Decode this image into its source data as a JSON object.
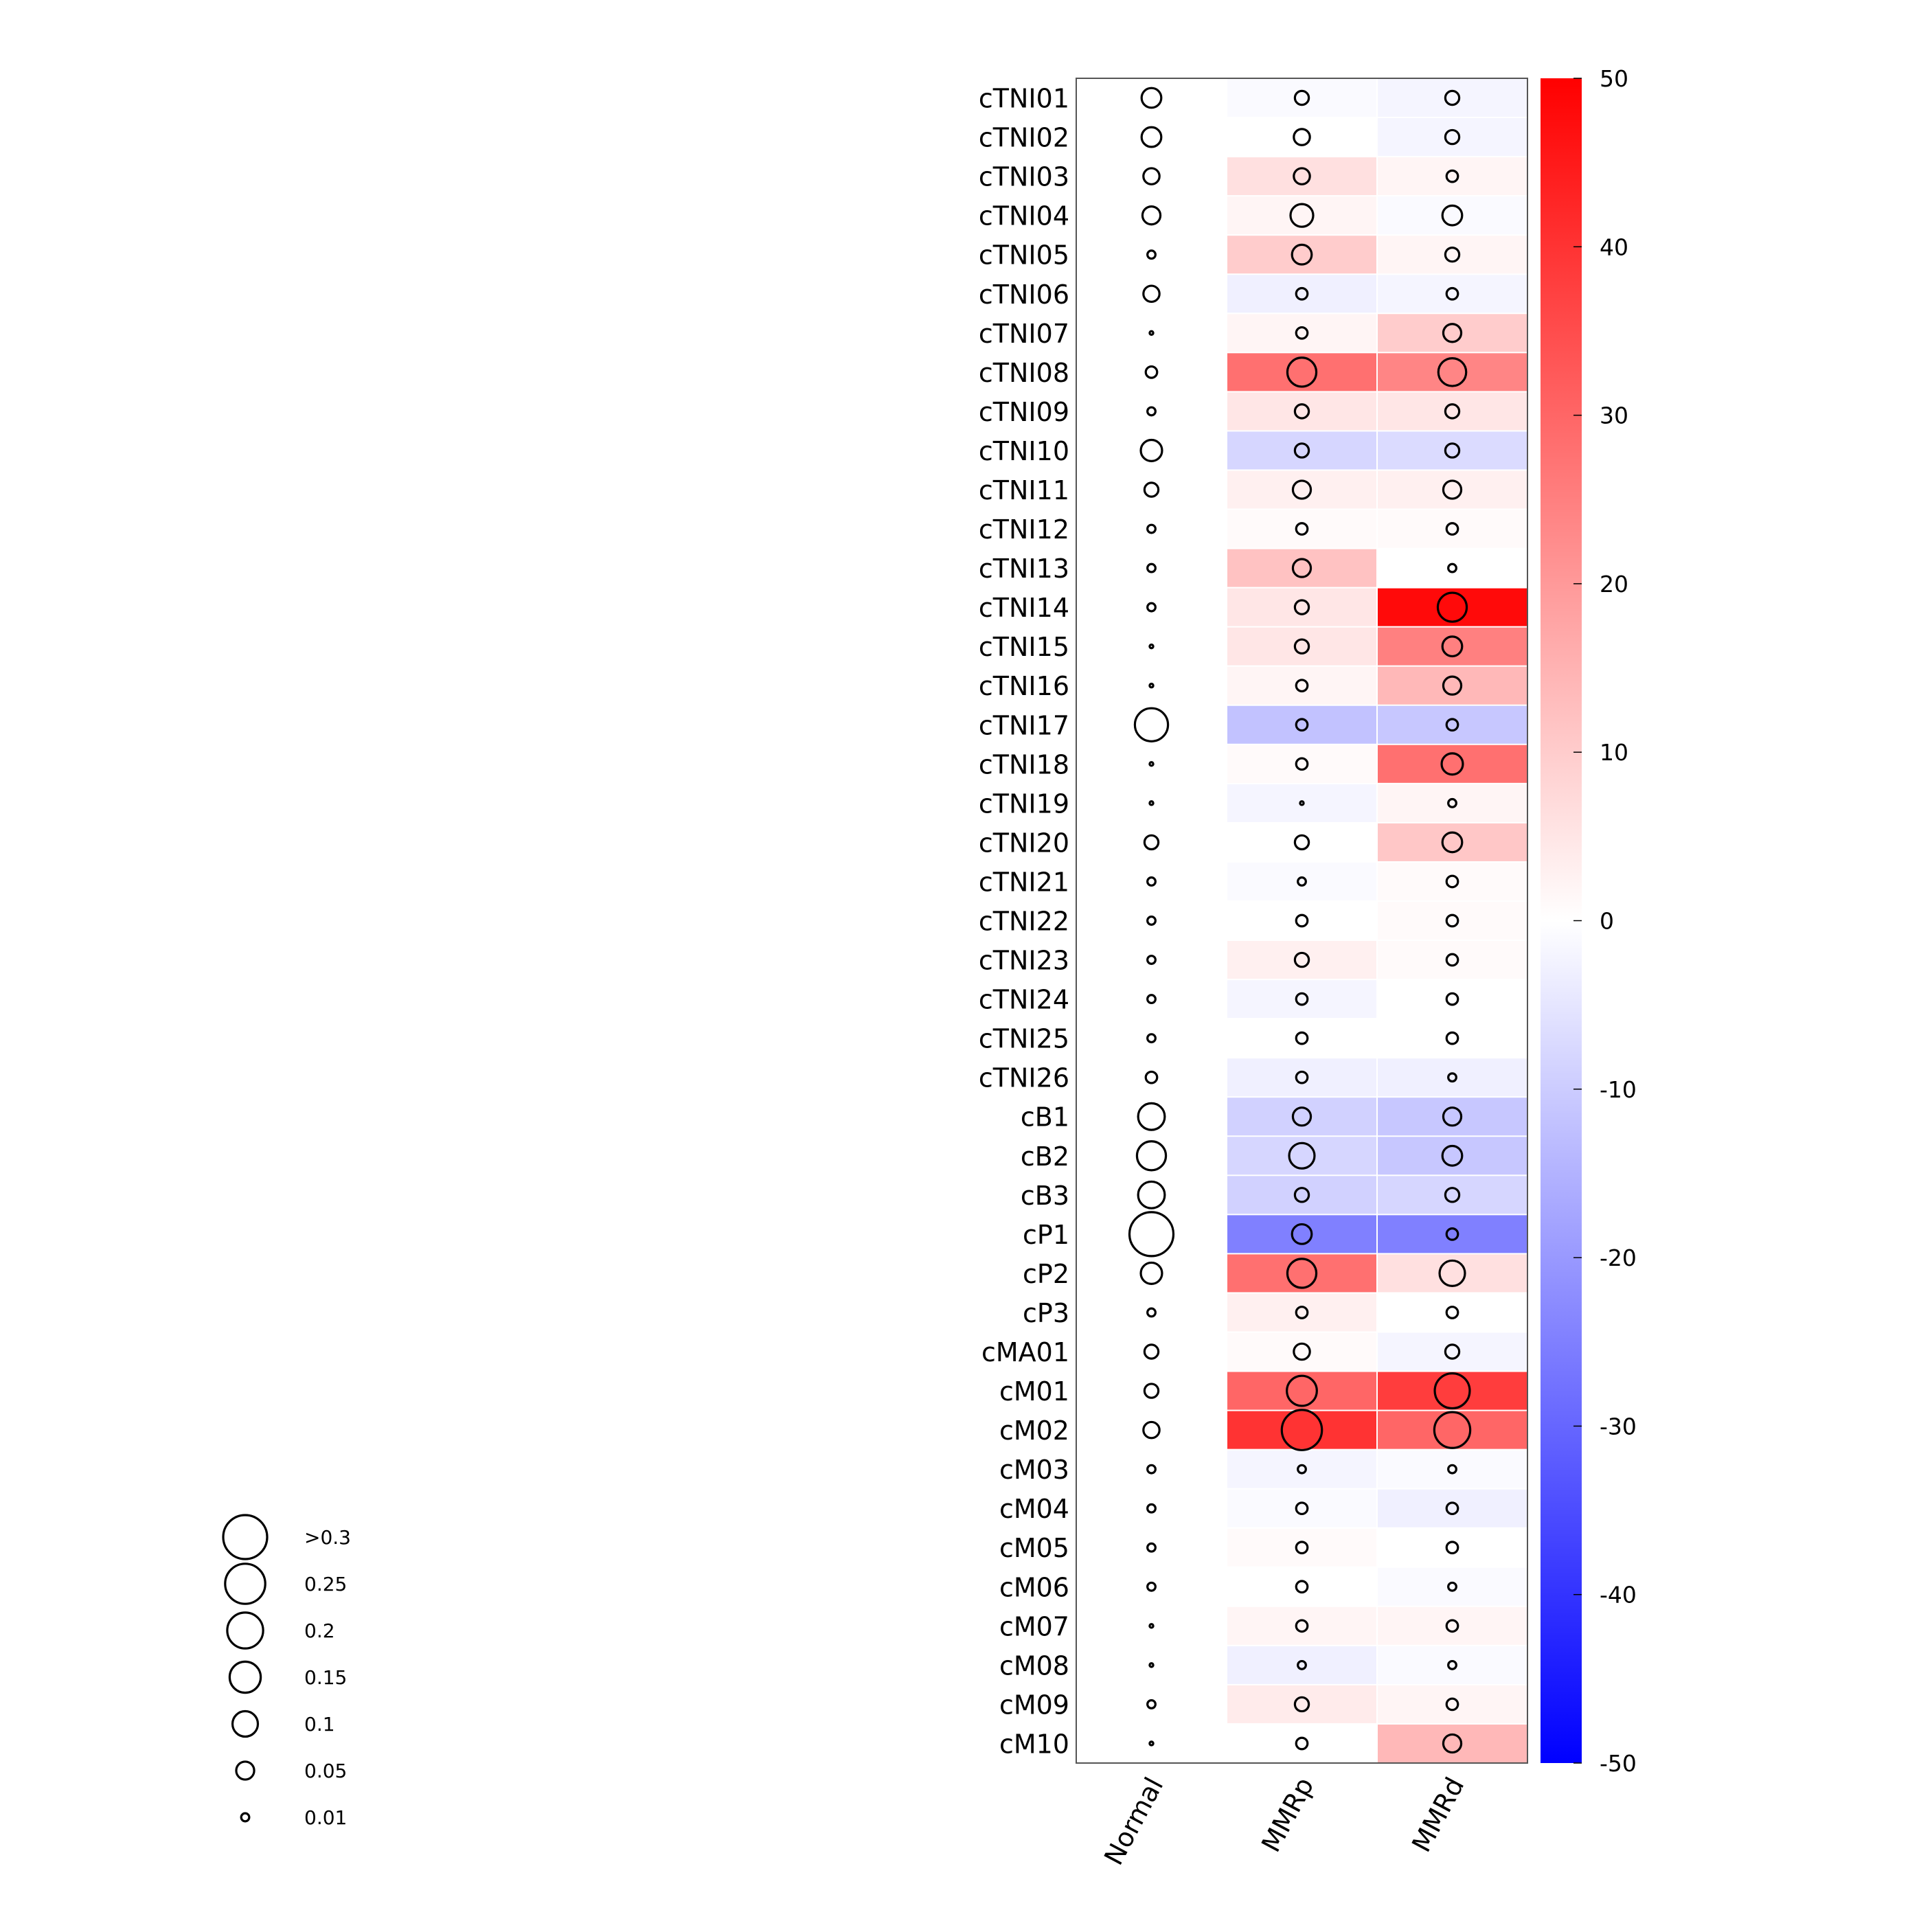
{
  "chart_data": {
    "type": "heatmap",
    "columns": [
      "Normal",
      "MMRp",
      "MMRd"
    ],
    "rows": [
      "cTNI01",
      "cTNI02",
      "cTNI03",
      "cTNI04",
      "cTNI05",
      "cTNI06",
      "cTNI07",
      "cTNI08",
      "cTNI09",
      "cTNI10",
      "cTNI11",
      "cTNI12",
      "cTNI13",
      "cTNI14",
      "cTNI15",
      "cTNI16",
      "cTNI17",
      "cTNI18",
      "cTNI19",
      "cTNI20",
      "cTNI21",
      "cTNI22",
      "cTNI23",
      "cTNI24",
      "cTNI25",
      "cTNI26",
      "cB1",
      "cB2",
      "cB3",
      "cP1",
      "cP2",
      "cP3",
      "cMA01",
      "cM01",
      "cM02",
      "cM03",
      "cM04",
      "cM05",
      "cM06",
      "cM07",
      "cM08",
      "cM09",
      "cM10"
    ],
    "color_values": [
      [
        null,
        -1,
        -2
      ],
      [
        null,
        0,
        -2
      ],
      [
        null,
        6,
        2
      ],
      [
        null,
        2,
        -1
      ],
      [
        null,
        10,
        2
      ],
      [
        null,
        -3,
        -2
      ],
      [
        null,
        2,
        10
      ],
      [
        null,
        28,
        24
      ],
      [
        null,
        5,
        5
      ],
      [
        null,
        -8,
        -7
      ],
      [
        null,
        3,
        3
      ],
      [
        null,
        1,
        1
      ],
      [
        null,
        12,
        0
      ],
      [
        null,
        5,
        48
      ],
      [
        null,
        5,
        25
      ],
      [
        null,
        2,
        14
      ],
      [
        null,
        -12,
        -11
      ],
      [
        null,
        1,
        28
      ],
      [
        null,
        -2,
        2
      ],
      [
        null,
        0,
        11
      ],
      [
        null,
        -1,
        1
      ],
      [
        null,
        0,
        1
      ],
      [
        null,
        3,
        1
      ],
      [
        null,
        -2,
        0
      ],
      [
        null,
        0,
        0
      ],
      [
        null,
        -3,
        -3
      ],
      [
        null,
        -9,
        -11
      ],
      [
        null,
        -8,
        -11
      ],
      [
        null,
        -9,
        -8
      ],
      [
        null,
        -25,
        -25
      ],
      [
        null,
        28,
        6
      ],
      [
        null,
        3,
        0
      ],
      [
        null,
        1,
        -2
      ],
      [
        null,
        30,
        38
      ],
      [
        null,
        40,
        30
      ],
      [
        null,
        -2,
        -1
      ],
      [
        null,
        -1,
        -3
      ],
      [
        null,
        1,
        0
      ],
      [
        null,
        0,
        -1
      ],
      [
        null,
        2,
        2
      ],
      [
        null,
        -3,
        -1
      ],
      [
        null,
        4,
        2
      ],
      [
        null,
        0,
        14
      ]
    ],
    "size_values": [
      [
        0.06,
        0.03,
        0.03
      ],
      [
        0.06,
        0.04,
        0.03
      ],
      [
        0.04,
        0.04,
        0.02
      ],
      [
        0.05,
        0.08,
        0.06
      ],
      [
        0.01,
        0.06,
        0.03
      ],
      [
        0.04,
        0.02,
        0.02
      ],
      [
        0.0,
        0.02,
        0.05
      ],
      [
        0.02,
        0.13,
        0.12
      ],
      [
        0.01,
        0.03,
        0.03
      ],
      [
        0.07,
        0.03,
        0.03
      ],
      [
        0.03,
        0.05,
        0.05
      ],
      [
        0.01,
        0.02,
        0.02
      ],
      [
        0.01,
        0.05,
        0.01
      ],
      [
        0.01,
        0.03,
        0.13
      ],
      [
        0.0,
        0.03,
        0.06
      ],
      [
        0.0,
        0.02,
        0.05
      ],
      [
        0.17,
        0.02,
        0.02
      ],
      [
        0.0,
        0.02,
        0.07
      ],
      [
        0.0,
        0.0,
        0.01
      ],
      [
        0.03,
        0.03,
        0.06
      ],
      [
        0.01,
        0.01,
        0.02
      ],
      [
        0.01,
        0.02,
        0.02
      ],
      [
        0.01,
        0.03,
        0.02
      ],
      [
        0.01,
        0.02,
        0.02
      ],
      [
        0.01,
        0.02,
        0.02
      ],
      [
        0.02,
        0.02,
        0.01
      ],
      [
        0.11,
        0.05,
        0.05
      ],
      [
        0.13,
        0.1,
        0.06
      ],
      [
        0.11,
        0.03,
        0.03
      ],
      [
        0.32,
        0.06,
        0.02
      ],
      [
        0.07,
        0.13,
        0.1
      ],
      [
        0.01,
        0.02,
        0.02
      ],
      [
        0.03,
        0.04,
        0.03
      ],
      [
        0.03,
        0.14,
        0.19
      ],
      [
        0.04,
        0.25,
        0.2
      ],
      [
        0.01,
        0.01,
        0.01
      ],
      [
        0.01,
        0.02,
        0.02
      ],
      [
        0.01,
        0.02,
        0.02
      ],
      [
        0.01,
        0.02,
        0.01
      ],
      [
        0.0,
        0.02,
        0.02
      ],
      [
        0.0,
        0.01,
        0.01
      ],
      [
        0.01,
        0.03,
        0.02
      ],
      [
        0.0,
        0.02,
        0.05
      ]
    ],
    "colorbar": {
      "range": [
        -50,
        50
      ],
      "ticks": [
        "50",
        "40",
        "30",
        "20",
        "10",
        "0",
        "-10",
        "-20",
        "-30",
        "-40",
        "-50"
      ],
      "colors": {
        "low": "#0000ff",
        "mid": "#ffffff",
        "high": "#ff0000"
      }
    },
    "size_legend": {
      "labels": [
        ">0.3",
        "0.25",
        "0.2",
        "0.15",
        "0.1",
        "0.05",
        "0.01"
      ],
      "values": [
        0.3,
        0.25,
        0.2,
        0.15,
        0.1,
        0.05,
        0.01
      ]
    },
    "title": "",
    "xlabel": "",
    "ylabel": ""
  }
}
